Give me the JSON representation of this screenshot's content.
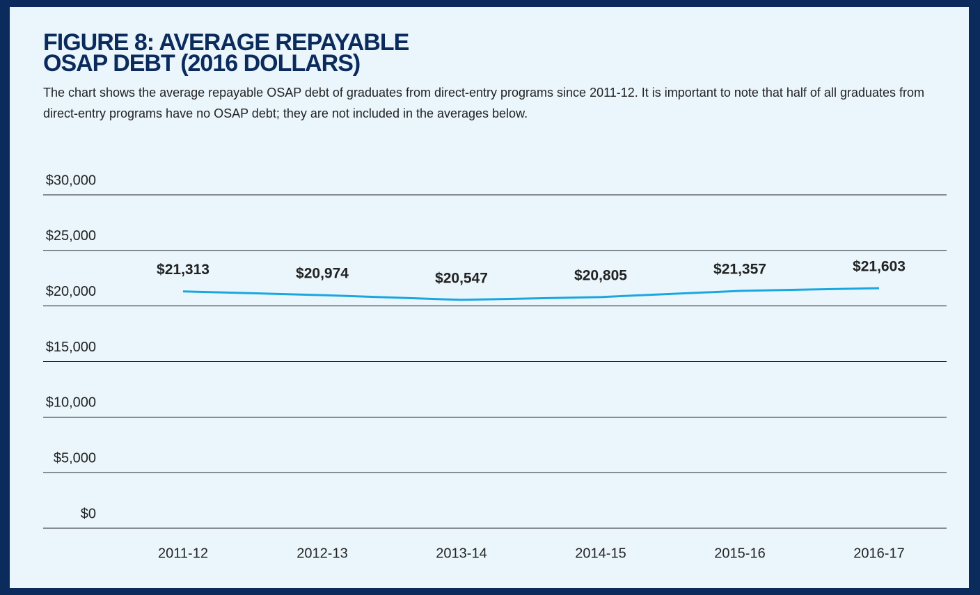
{
  "chart_data": {
    "type": "line",
    "title": [
      "FIGURE 8: AVERAGE REPAYABLE",
      "OSAP DEBT (2016 DOLLARS)"
    ],
    "subtitle": "The chart shows the average repayable OSAP debt of graduates from direct-entry programs since 2011-12. It is important to note that half of all graduates from direct-entry programs have no OSAP debt; they are not included in the averages below.",
    "categories": [
      "2011-12",
      "2012-13",
      "2013-14",
      "2014-15",
      "2015-16",
      "2016-17"
    ],
    "values": [
      21313,
      20974,
      20547,
      20805,
      21357,
      21603
    ],
    "value_labels": [
      "$21,313",
      "$20,974",
      "$20,547",
      "$20,805",
      "$21,357",
      "$21,603"
    ],
    "color": "#1aa7e0",
    "ylim": [
      0,
      30000
    ],
    "yticks": [
      {
        "value": 0,
        "label": "$0"
      },
      {
        "value": 5000,
        "label": "$5,000"
      },
      {
        "value": 10000,
        "label": "$10,000"
      },
      {
        "value": 15000,
        "label": "$15,000"
      },
      {
        "value": 20000,
        "label": "$20,000"
      },
      {
        "value": 25000,
        "label": "$25,000"
      },
      {
        "value": 30000,
        "label": "$30,000"
      }
    ],
    "grid": true
  }
}
